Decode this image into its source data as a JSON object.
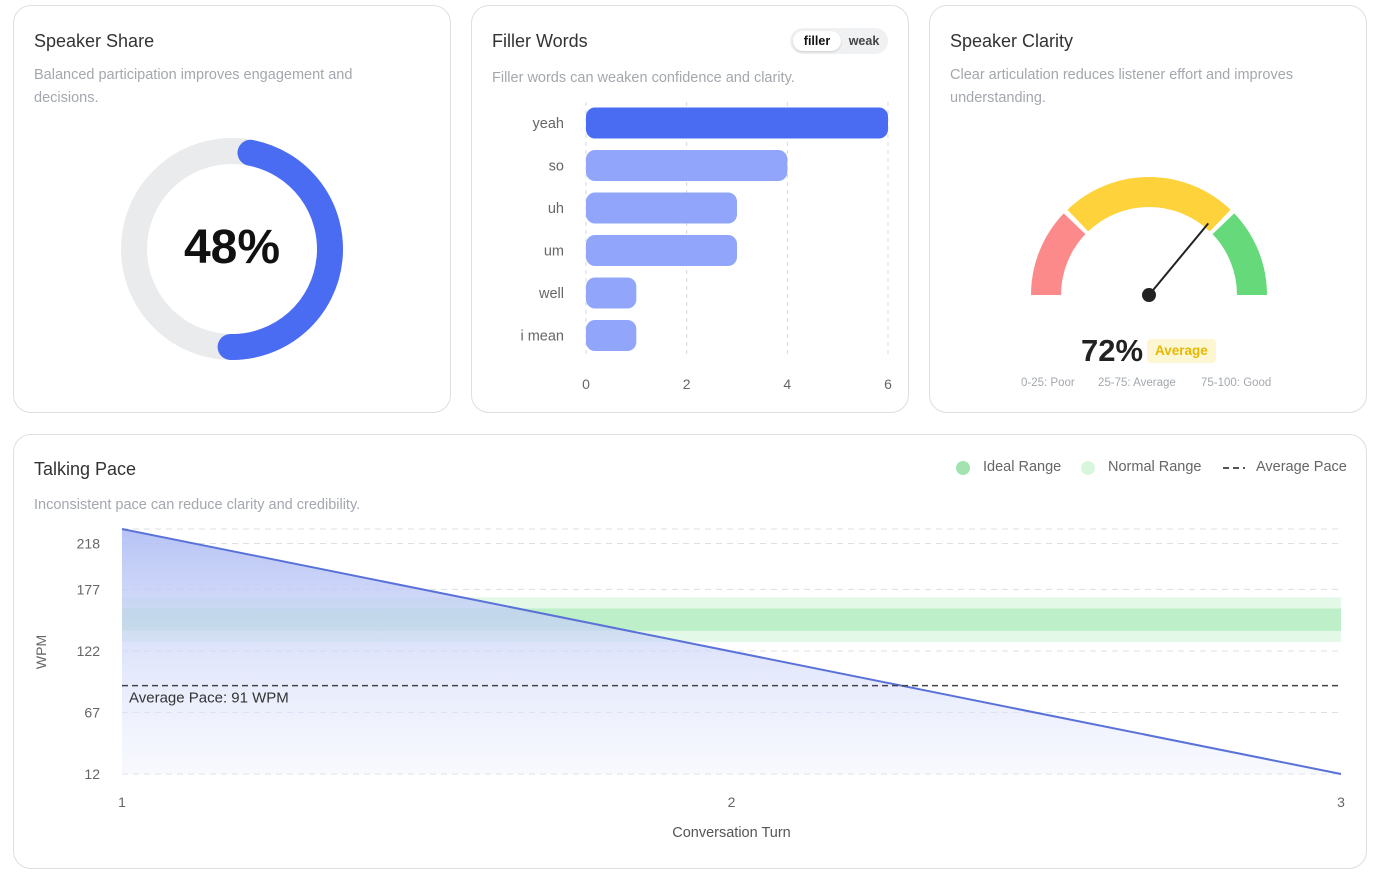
{
  "speaker_share": {
    "title": "Speaker Share",
    "subtitle_line1": "Balanced participation improves engagement and",
    "subtitle_line2": "decisions.",
    "value_label": "48%",
    "value_fraction": 0.48,
    "colors": {
      "fill": "#4a6cf2",
      "track": "#e9ebed"
    }
  },
  "filler_words": {
    "title": "Filler Words",
    "subtitle": "Filler words can weaken confidence and clarity.",
    "toggle": {
      "active": "filler",
      "inactive": "weak"
    },
    "chart_data": {
      "type": "bar",
      "orientation": "horizontal",
      "categories": [
        "yeah",
        "so",
        "uh",
        "um",
        "well",
        "i mean"
      ],
      "values": [
        6,
        4,
        3,
        3,
        1,
        1
      ],
      "xlim": [
        0,
        6
      ],
      "xticks": [
        "0",
        "2",
        "4",
        "6"
      ],
      "colors": {
        "top": "#4a6cf2",
        "other": "#91a6fb"
      }
    }
  },
  "speaker_clarity": {
    "title": "Speaker Clarity",
    "subtitle_line1": "Clear articulation reduces listener effort and improves",
    "subtitle_line2": "understanding.",
    "value_label": "72%",
    "value": 72,
    "badge": "Average",
    "ranges": [
      "0-25: Poor",
      "25-75: Average",
      "75-100: Good"
    ],
    "colors": {
      "poor": "#fd8a8a",
      "average": "#fdd23a",
      "good": "#66da7a",
      "needle": "#222222"
    }
  },
  "talking_pace": {
    "title": "Talking Pace",
    "subtitle": "Inconsistent pace can reduce clarity and credibility.",
    "legend": {
      "ideal": "Ideal Range",
      "normal": "Normal Range",
      "average": "Average Pace"
    },
    "average_label": "Average Pace: 91 WPM",
    "chart_data": {
      "type": "area",
      "x": [
        1,
        3
      ],
      "y": [
        231,
        12
      ],
      "xlim": [
        1,
        3
      ],
      "ylim": [
        12,
        231
      ],
      "xticks": [
        "1",
        "2",
        "3"
      ],
      "yticks": [
        "12",
        "67",
        "122",
        "177",
        "218"
      ],
      "xlabel": "Conversation Turn",
      "ylabel": "WPM",
      "average": 91,
      "ideal_range": [
        140,
        160
      ],
      "normal_range": [
        130,
        170
      ],
      "colors": {
        "line": "#5a72d8",
        "ideal": "#bdefc9",
        "normal": "#e4f8e8"
      }
    }
  }
}
